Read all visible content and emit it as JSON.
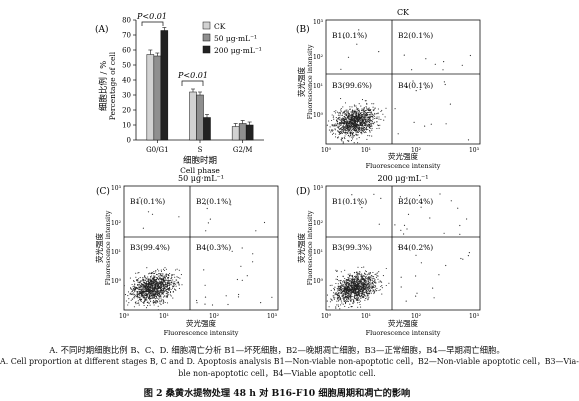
{
  "bar_panel": {
    "label": "(A)",
    "ylabel_cn": "细胞比例 / %",
    "ylabel_en": "Percentage of cell",
    "xlabel_cn": "细胞时期",
    "xlabel_en": "Cell phase",
    "categories": [
      "G0/G1",
      "S",
      "G2/M"
    ],
    "significance": [
      "P<0.01",
      "P<0.01"
    ],
    "legend": [
      "CK",
      "50 μg·mL⁻¹",
      "200 μg·mL⁻¹"
    ]
  },
  "colors": {
    "CK": "#d2d2d2",
    "low": "#8f8f8f",
    "high": "#222222"
  },
  "flow_panels": [
    {
      "label": "(B)",
      "title": "CK",
      "quadrants": [
        "B1(0.1%)",
        "B2(0.1%)",
        "B3(99.6%)",
        "B4(0.1%)"
      ]
    },
    {
      "label": "(C)",
      "title": "50 μg·mL⁻¹",
      "quadrants": [
        "B1(0.1%)",
        "B2(0.1%)",
        "B3(99.4%)",
        "B4(0.3%)"
      ]
    },
    {
      "label": "(D)",
      "title": "200 μg·mL⁻¹",
      "quadrants": [
        "B1(0.1%)",
        "B2(0.4%)",
        "B3(99.3%)",
        "B4(0.2%)"
      ]
    }
  ],
  "flow_axes": {
    "x_cn": "荧光强度",
    "x_en": "Fluorescence intensity",
    "y_cn": "荧光强度",
    "y_en": "Fluorescence intensity",
    "ticks": [
      "10⁰",
      "10¹",
      "10²",
      "10³"
    ]
  },
  "chart_data": [
    {
      "type": "bar",
      "categories": [
        "G0/G1",
        "S",
        "G2/M"
      ],
      "series": [
        {
          "name": "CK",
          "values": [
            57,
            32,
            9
          ],
          "errors": [
            3,
            2,
            2
          ]
        },
        {
          "name": "50 μg·mL⁻¹",
          "values": [
            56,
            30,
            11
          ],
          "errors": [
            2,
            2,
            2
          ]
        },
        {
          "name": "200 μg·mL⁻¹",
          "values": [
            73,
            15,
            10
          ],
          "errors": [
            2,
            2,
            2
          ]
        }
      ],
      "ylim": [
        0,
        80
      ],
      "yticks": [
        0,
        10,
        20,
        30,
        40,
        50,
        60,
        70,
        80
      ],
      "xlabel": "细胞时期 Cell phase",
      "ylabel": "细胞比例 / % Percentage of cell",
      "annotations": [
        "P<0.01",
        "P<0.01"
      ],
      "legend_position": "top-right"
    },
    {
      "type": "scatter",
      "title": "CK",
      "axis_scale": "log",
      "xlim": [
        1,
        1000
      ],
      "ylim": [
        1,
        1000
      ],
      "quadrants": {
        "B1": 0.1,
        "B2": 0.1,
        "B3": 99.6,
        "B4": 0.1
      }
    },
    {
      "type": "scatter",
      "title": "50 μg·mL⁻¹",
      "axis_scale": "log",
      "xlim": [
        1,
        1000
      ],
      "ylim": [
        1,
        1000
      ],
      "quadrants": {
        "B1": 0.1,
        "B2": 0.1,
        "B3": 99.4,
        "B4": 0.3
      }
    },
    {
      "type": "scatter",
      "title": "200 μg·mL⁻¹",
      "axis_scale": "log",
      "xlim": [
        1,
        1000
      ],
      "ylim": [
        1,
        1000
      ],
      "quadrants": {
        "B1": 0.1,
        "B2": 0.4,
        "B3": 99.3,
        "B4": 0.2
      }
    }
  ],
  "caption": {
    "line1": "A. 不同时期细胞比例   B、C、D. 细胞凋亡分析   B1—坏死细胞，B2—晚期凋亡细胞，B3—正常细胞，B4—早期凋亡细胞。",
    "line2": "A. Cell proportion at different stages   B, C and D. Apoptosis analysis   B1—Non-viable non-apoptotic cell，B2—Non-viable apoptotic cell，B3—Via-",
    "line3": "ble non-apoptotic cell，B4—Viable apoptotic cell.",
    "title": "图 2   桑黄水提物处理 48 h 对 B16-F10 细胞周期和凋亡的影响"
  }
}
